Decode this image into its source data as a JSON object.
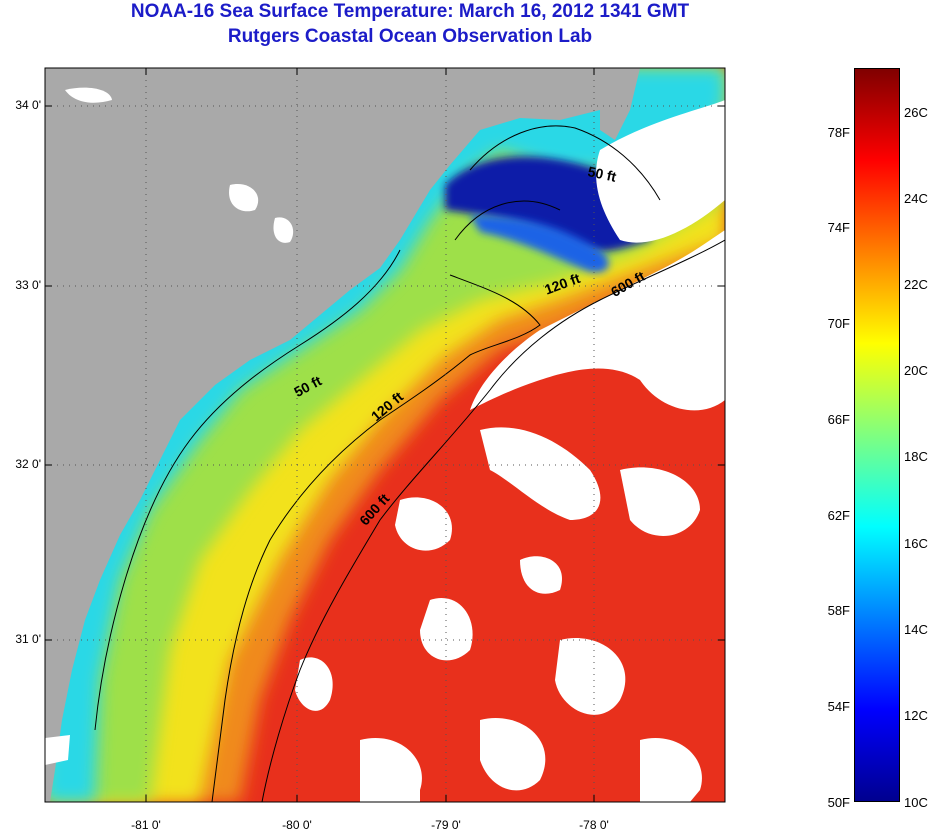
{
  "title": "NOAA-16 Sea Surface Temperature:  March 16, 2012 1341 GMT",
  "subtitle": "Rutgers Coastal Ocean Observation Lab",
  "y_ticks": [
    "34 0'",
    "33 0'",
    "32 0'",
    "31 0'"
  ],
  "x_ticks": [
    "-81 0'",
    "-80 0'",
    "-79 0'",
    "-78 0'"
  ],
  "contours": [
    "50 ft",
    "120 ft",
    "600 ft",
    "50 ft",
    "120 ft",
    "600 ft"
  ],
  "colorbar": {
    "fahrenheit": [
      "78F",
      "74F",
      "70F",
      "66F",
      "62F",
      "58F",
      "54F",
      "50F"
    ],
    "celsius": [
      "26C",
      "24C",
      "22C",
      "20C",
      "18C",
      "16C",
      "14C",
      "12C",
      "10C"
    ],
    "colormap": "jet"
  },
  "colors": {
    "title": "#1c1cc8",
    "land": "#a9a9a9",
    "cloud": "#ffffff",
    "warm": "#e8281e",
    "cold": "#0a1aa8"
  }
}
